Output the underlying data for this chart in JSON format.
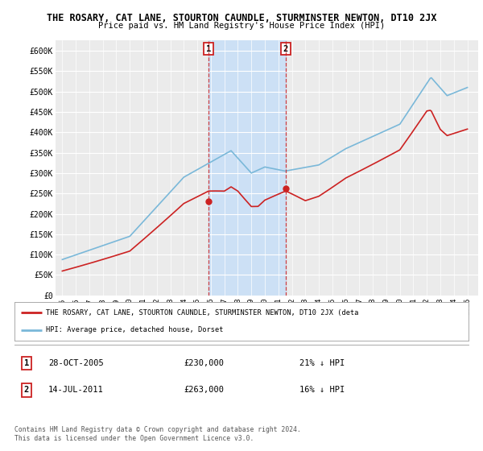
{
  "title": "THE ROSARY, CAT LANE, STOURTON CAUNDLE, STURMINSTER NEWTON, DT10 2JX",
  "subtitle": "Price paid vs. HM Land Registry's House Price Index (HPI)",
  "ylabel_ticks": [
    "£0",
    "£50K",
    "£100K",
    "£150K",
    "£200K",
    "£250K",
    "£300K",
    "£350K",
    "£400K",
    "£450K",
    "£500K",
    "£550K",
    "£600K"
  ],
  "ytick_values": [
    0,
    50000,
    100000,
    150000,
    200000,
    250000,
    300000,
    350000,
    400000,
    450000,
    500000,
    550000,
    600000
  ],
  "ylim": [
    0,
    620000
  ],
  "hpi_color": "#7ab8d9",
  "price_color": "#cc2222",
  "sale1_date": "28-OCT-2005",
  "sale1_price": 230000,
  "sale1_label": "21% ↓ HPI",
  "sale2_date": "14-JUL-2011",
  "sale2_price": 263000,
  "sale2_label": "16% ↓ HPI",
  "legend_text1": "THE ROSARY, CAT LANE, STOURTON CAUNDLE, STURMINSTER NEWTON, DT10 2JX (deta",
  "legend_text2": "HPI: Average price, detached house, Dorset",
  "footnote": "Contains HM Land Registry data © Crown copyright and database right 2024.\nThis data is licensed under the Open Government Licence v3.0.",
  "background_color": "#ffffff",
  "plot_bg_color": "#ebebeb",
  "shade_color": "#cce0f5",
  "sale1_x": 2005.83,
  "sale2_x": 2011.54,
  "xmin": 1994.5,
  "xmax": 2025.8
}
